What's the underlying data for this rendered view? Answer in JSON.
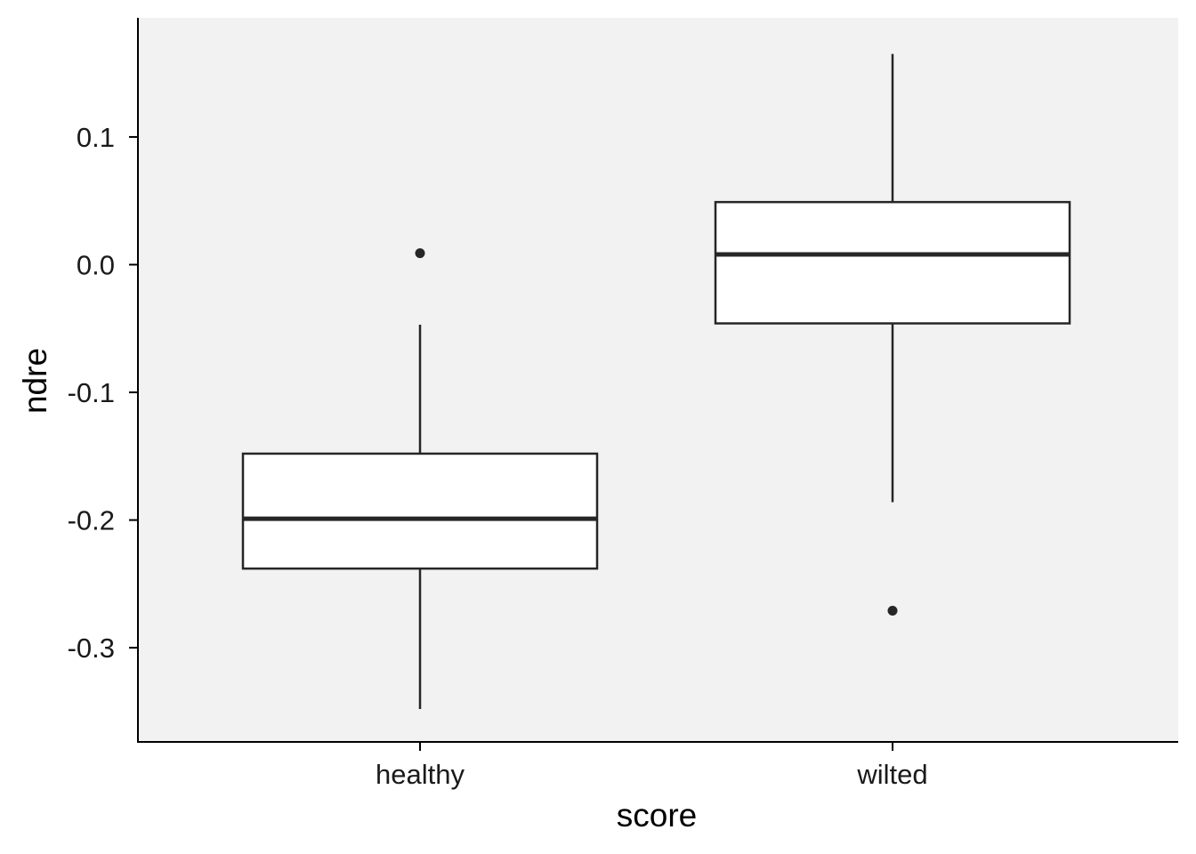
{
  "chart_data": {
    "type": "boxplot",
    "title": "",
    "xlabel": "score",
    "ylabel": "ndre",
    "ylim": [
      -0.375,
      0.19
    ],
    "yticks": [
      0.1,
      0.0,
      -0.1,
      -0.2,
      -0.3
    ],
    "ytick_labels": [
      "0.1",
      "0.0",
      "-0.1",
      "-0.2",
      "-0.3"
    ],
    "grid": false,
    "categories": [
      "healthy",
      "wilted"
    ],
    "boxes": [
      {
        "category": "healthy",
        "q1": -0.238,
        "median": -0.199,
        "q3": -0.148,
        "whisker_low": -0.348,
        "whisker_high": -0.047,
        "outliers": [
          0.009
        ]
      },
      {
        "category": "wilted",
        "q1": -0.046,
        "median": 0.008,
        "q3": 0.049,
        "whisker_low": -0.186,
        "whisker_high": 0.165,
        "outliers": [
          -0.271
        ]
      }
    ],
    "colors": {
      "panel": "#f2f2f2",
      "box_fill": "#ffffff",
      "stroke": "#262626",
      "axis": "#000000"
    }
  }
}
